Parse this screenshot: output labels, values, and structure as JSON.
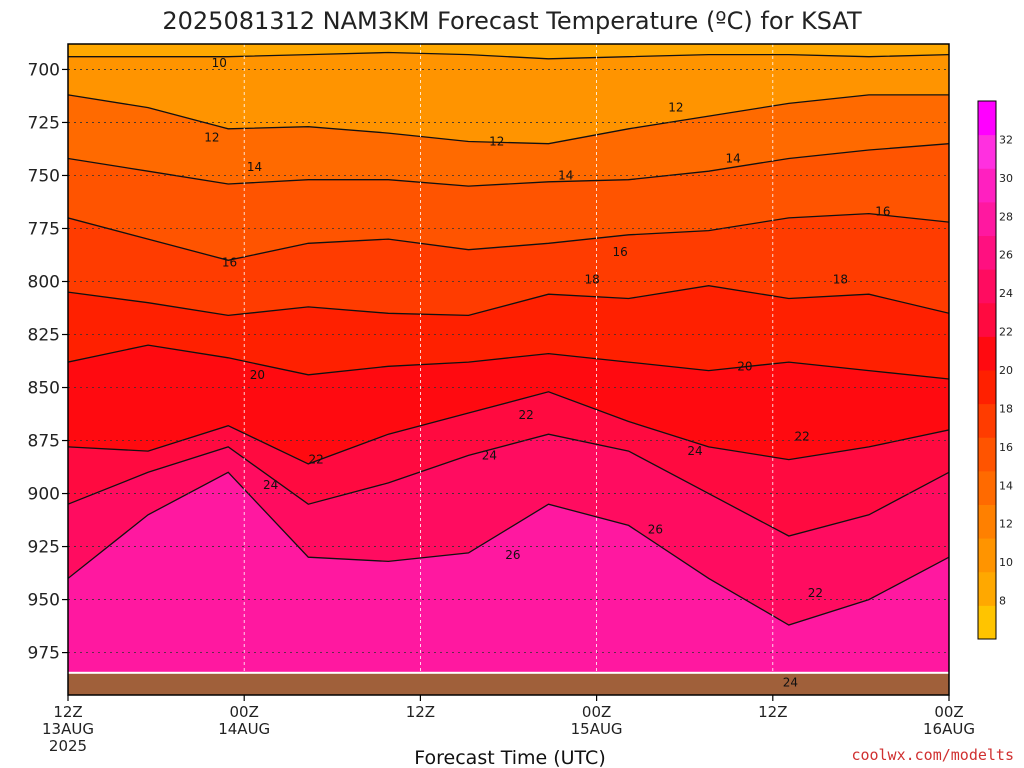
{
  "chart_data": {
    "type": "heatmap",
    "title": "2025081312 NAM3KM Forecast Temperature (ºC) for KSAT",
    "xlabel": "Forecast Time (UTC)",
    "ylabel": "",
    "credit": "coolwx.com/modelts",
    "x_ticks": [
      {
        "hour": 0,
        "lines": [
          "12Z",
          "13AUG",
          "2025"
        ]
      },
      {
        "hour": 12,
        "lines": [
          "00Z",
          "14AUG"
        ]
      },
      {
        "hour": 24,
        "lines": [
          "12Z"
        ]
      },
      {
        "hour": 36,
        "lines": [
          "00Z",
          "15AUG"
        ]
      },
      {
        "hour": 48,
        "lines": [
          "12Z"
        ]
      },
      {
        "hour": 60,
        "lines": [
          "00Z",
          "16AUG"
        ]
      }
    ],
    "x_range_hours": [
      0,
      60
    ],
    "y_ticks": [
      700,
      725,
      750,
      775,
      800,
      825,
      850,
      875,
      900,
      925,
      950,
      975
    ],
    "y_range_hPa": [
      688,
      995
    ],
    "surface_pressure_hPa": 985,
    "colorbar": {
      "ticks": [
        8,
        10,
        12,
        14,
        16,
        18,
        20,
        22,
        24,
        26,
        28,
        30,
        32
      ],
      "range": [
        6,
        34
      ],
      "colors": [
        "#ffc400",
        "#ffa800",
        "#ff9400",
        "#ff8000",
        "#ff6a00",
        "#ff5400",
        "#ff3c00",
        "#ff2000",
        "#ff0a10",
        "#ff0a40",
        "#ff0c60",
        "#ff1080",
        "#ff18a0",
        "#ff20c0",
        "#ff30e0",
        "#ff00ff"
      ]
    },
    "grid": true,
    "series": [
      {
        "isotherm": 10,
        "pressures_hPa": [
          694,
          694,
          694,
          693,
          692,
          693,
          695,
          694,
          693,
          693,
          694,
          693
        ]
      },
      {
        "isotherm": 12,
        "pressures_hPa": [
          712,
          718,
          728,
          727,
          730,
          734,
          735,
          728,
          722,
          716,
          712,
          712
        ]
      },
      {
        "isotherm": 14,
        "pressures_hPa": [
          742,
          748,
          754,
          752,
          752,
          755,
          753,
          752,
          748,
          742,
          738,
          735
        ]
      },
      {
        "isotherm": 16,
        "pressures_hPa": [
          770,
          780,
          790,
          782,
          780,
          785,
          782,
          778,
          776,
          770,
          768,
          772
        ]
      },
      {
        "isotherm": 18,
        "pressures_hPa": [
          805,
          810,
          816,
          812,
          815,
          816,
          806,
          808,
          802,
          808,
          806,
          815
        ]
      },
      {
        "isotherm": 20,
        "pressures_hPa": [
          838,
          830,
          836,
          844,
          840,
          838,
          834,
          838,
          842,
          838,
          842,
          846
        ]
      },
      {
        "isotherm": 22,
        "pressures_hPa": [
          878,
          880,
          868,
          886,
          872,
          862,
          852,
          866,
          878,
          884,
          878,
          870
        ]
      },
      {
        "isotherm": 24,
        "pressures_hPa": [
          905,
          890,
          878,
          905,
          895,
          882,
          872,
          880,
          900,
          920,
          910,
          890
        ]
      },
      {
        "isotherm": 26,
        "pressures_hPa": [
          940,
          910,
          890,
          930,
          932,
          928,
          905,
          915,
          940,
          962,
          950,
          930
        ]
      }
    ],
    "contour_labels": [
      {
        "hour": 10.3,
        "hPa": 697,
        "text": "10"
      },
      {
        "hour": 41.4,
        "hPa": 718,
        "text": "12"
      },
      {
        "hour": 9.8,
        "hPa": 732,
        "text": "12"
      },
      {
        "hour": 29.2,
        "hPa": 734,
        "text": "12"
      },
      {
        "hour": 45.3,
        "hPa": 742,
        "text": "14"
      },
      {
        "hour": 12.7,
        "hPa": 746,
        "text": "14"
      },
      {
        "hour": 33.9,
        "hPa": 750,
        "text": "14"
      },
      {
        "hour": 55.5,
        "hPa": 767,
        "text": "16"
      },
      {
        "hour": 37.6,
        "hPa": 786,
        "text": "16"
      },
      {
        "hour": 11.0,
        "hPa": 791,
        "text": "16"
      },
      {
        "hour": 35.7,
        "hPa": 799,
        "text": "18"
      },
      {
        "hour": 52.6,
        "hPa": 799,
        "text": "18"
      },
      {
        "hour": 46.1,
        "hPa": 840,
        "text": "20"
      },
      {
        "hour": 12.9,
        "hPa": 844,
        "text": "20"
      },
      {
        "hour": 31.2,
        "hPa": 863,
        "text": "22"
      },
      {
        "hour": 50.0,
        "hPa": 873,
        "text": "22"
      },
      {
        "hour": 16.9,
        "hPa": 884,
        "text": "22"
      },
      {
        "hour": 42.7,
        "hPa": 880,
        "text": "24"
      },
      {
        "hour": 28.7,
        "hPa": 882,
        "text": "24"
      },
      {
        "hour": 13.8,
        "hPa": 896,
        "text": "24"
      },
      {
        "hour": 40.0,
        "hPa": 917,
        "text": "26"
      },
      {
        "hour": 30.3,
        "hPa": 929,
        "text": "26"
      },
      {
        "hour": 50.9,
        "hPa": 947,
        "text": "22"
      },
      {
        "hour": 49.2,
        "hPa": 989,
        "text": "24"
      }
    ]
  }
}
